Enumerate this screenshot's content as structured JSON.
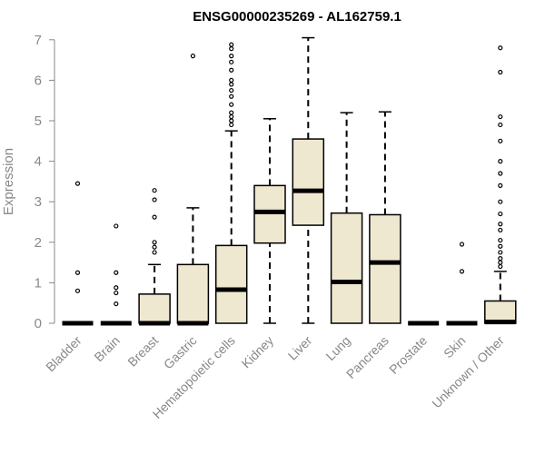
{
  "chart_data": {
    "type": "boxplot",
    "title": "ENSG00000235269 - AL162759.1",
    "ylabel": "Expression",
    "xlabel": "",
    "ylim": [
      0,
      7
    ],
    "yticks": [
      0,
      1,
      2,
      3,
      4,
      5,
      6,
      7
    ],
    "ytick_labels": [
      "0",
      "1",
      "2",
      "3",
      "4",
      "5",
      "6",
      "7"
    ],
    "grid": false,
    "colors": {
      "box_fill": "#efe8d0",
      "box_stroke": "#000000",
      "axis": "#888888",
      "tick_label": "#888888",
      "title": "#000000"
    },
    "categories": [
      "Bladder",
      "Brain",
      "Breast",
      "Gastric",
      "Hematopoietic cells",
      "Kidney",
      "Liver",
      "Lung",
      "Pancreas",
      "Prostate",
      "Skin",
      "Unknown / Other"
    ],
    "boxes": [
      {
        "category": "Bladder",
        "min": 0,
        "q1": 0,
        "median": 0,
        "q3": 0,
        "max": 0,
        "outliers": [
          0.8,
          1.25,
          3.45
        ]
      },
      {
        "category": "Brain",
        "min": 0,
        "q1": 0,
        "median": 0,
        "q3": 0,
        "max": 0,
        "outliers": [
          0.48,
          0.75,
          0.88,
          1.25,
          2.4
        ]
      },
      {
        "category": "Breast",
        "min": 0,
        "q1": 0,
        "median": 0,
        "q3": 0.72,
        "max": 1.45,
        "outliers": [
          1.75,
          1.88,
          2.0,
          2.62,
          3.05,
          3.28
        ]
      },
      {
        "category": "Gastric",
        "min": 0,
        "q1": 0,
        "median": 0,
        "q3": 1.45,
        "max": 2.85,
        "outliers": [
          6.6
        ]
      },
      {
        "category": "Hematopoietic cells",
        "min": 0,
        "q1": 0,
        "median": 0.83,
        "q3": 1.92,
        "max": 4.75,
        "outliers": [
          4.9,
          5.0,
          5.1,
          5.2,
          5.4,
          5.6,
          5.75,
          5.9,
          6.0,
          6.25,
          6.45,
          6.6,
          6.78,
          6.88
        ]
      },
      {
        "category": "Kidney",
        "min": 0,
        "q1": 1.98,
        "median": 2.75,
        "q3": 3.4,
        "max": 5.05,
        "outliers": []
      },
      {
        "category": "Liver",
        "min": 0,
        "q1": 2.42,
        "median": 3.27,
        "q3": 4.55,
        "max": 7.05,
        "outliers": []
      },
      {
        "category": "Lung",
        "min": 0,
        "q1": 0,
        "median": 1.02,
        "q3": 2.72,
        "max": 5.2,
        "outliers": []
      },
      {
        "category": "Pancreas",
        "min": 0,
        "q1": 0,
        "median": 1.5,
        "q3": 2.68,
        "max": 5.22,
        "outliers": []
      },
      {
        "category": "Prostate",
        "min": 0,
        "q1": 0,
        "median": 0,
        "q3": 0,
        "max": 0,
        "outliers": []
      },
      {
        "category": "Skin",
        "min": 0,
        "q1": 0,
        "median": 0,
        "q3": 0,
        "max": 0,
        "outliers": [
          1.28,
          1.95
        ]
      },
      {
        "category": "Unknown / Other",
        "min": 0,
        "q1": 0,
        "median": 0.03,
        "q3": 0.55,
        "max": 1.28,
        "outliers": [
          1.4,
          1.5,
          1.6,
          1.75,
          1.9,
          2.05,
          2.3,
          2.45,
          2.7,
          3.0,
          3.4,
          3.7,
          4.0,
          4.5,
          4.9,
          5.1,
          6.2,
          6.8
        ]
      }
    ]
  }
}
